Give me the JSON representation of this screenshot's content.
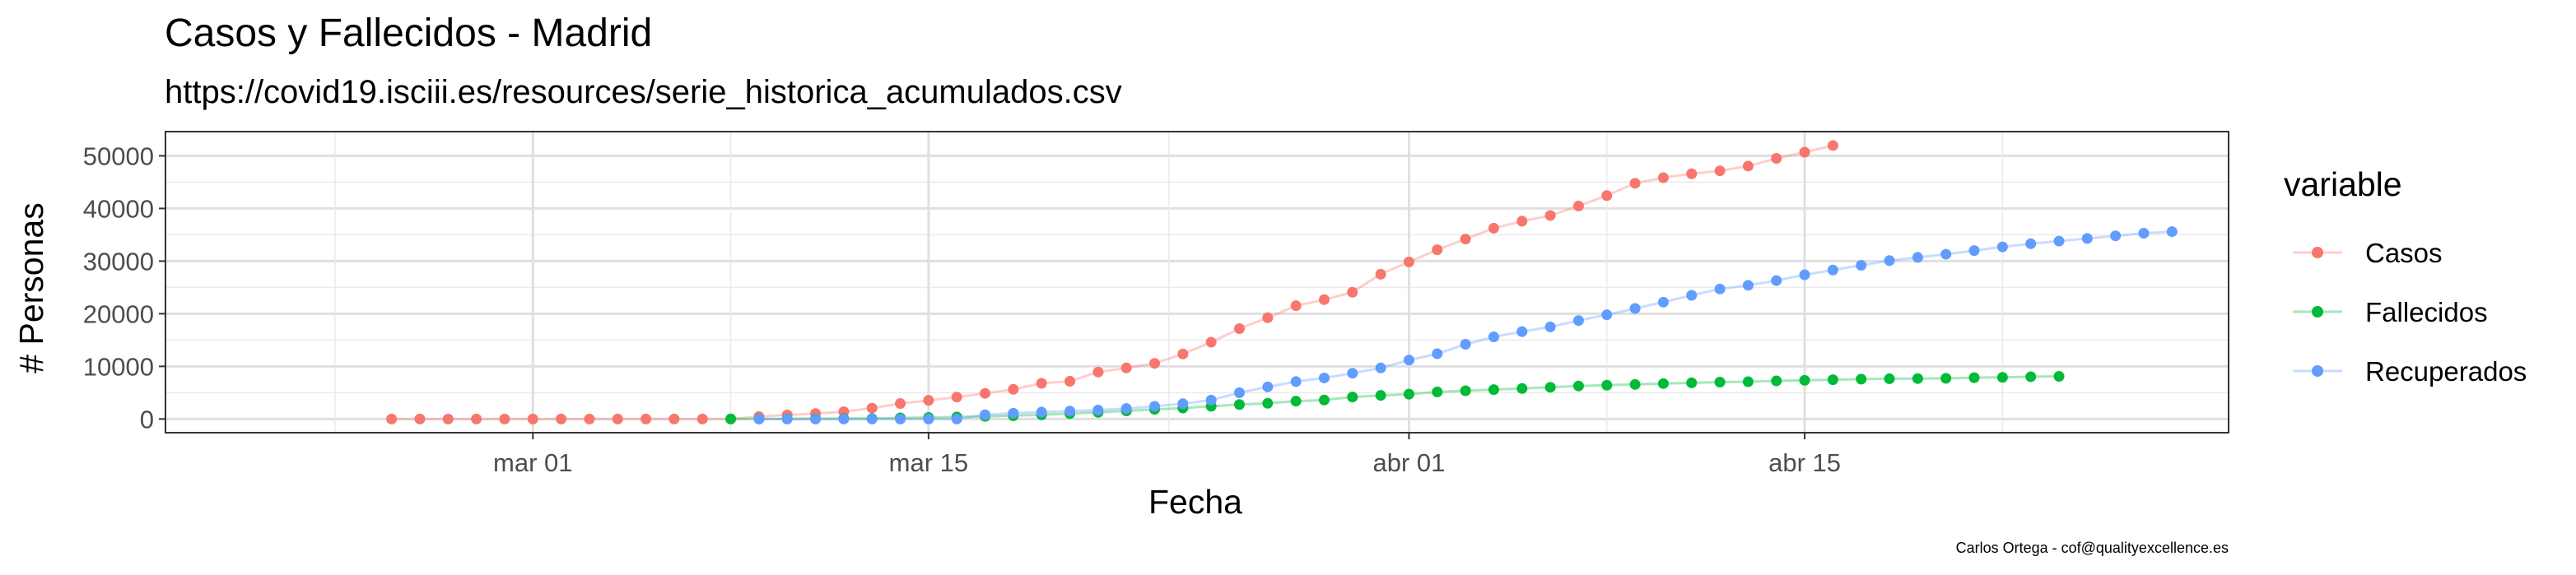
{
  "chart_data": {
    "type": "line",
    "title": "Casos y Fallecidos - Madrid",
    "subtitle": "https://covid19.isciii.es/resources/serie_historica_acumulados.csv",
    "xlabel": "Fecha",
    "ylabel": "# Personas",
    "caption": "Carlos Ortega - cof@qualityexcellence.es",
    "x_axis": {
      "type": "date",
      "range": [
        "2020-02-17",
        "2020-04-30"
      ],
      "ticks": [
        {
          "date": "2020-03-01",
          "label": "mar 01"
        },
        {
          "date": "2020-03-15",
          "label": "mar 15"
        },
        {
          "date": "2020-04-01",
          "label": "abr 01"
        },
        {
          "date": "2020-04-15",
          "label": "abr 15"
        }
      ]
    },
    "y_axis": {
      "range": [
        -2600,
        54600
      ],
      "ticks": [
        0,
        10000,
        20000,
        30000,
        40000,
        50000
      ]
    },
    "grid": true,
    "legend": {
      "title": "variable",
      "position": "right"
    },
    "series": [
      {
        "name": "Casos",
        "color": "#F8766D",
        "start_date": "2020-02-25",
        "values": [
          0,
          0,
          0,
          0,
          0,
          0,
          0,
          0,
          0,
          0,
          0,
          0,
          0,
          469,
          782,
          1024,
          1388,
          2078,
          2940,
          3544,
          4165,
          4871,
          5637,
          6777,
          7165,
          8921,
          9702,
          10575,
          12352,
          14597,
          17166,
          19243,
          21520,
          22677,
          24090,
          27509,
          29840,
          32155,
          34188,
          36249,
          37584,
          38666,
          40469,
          42450,
          44783,
          45849,
          46587,
          47146,
          48048,
          49526,
          50694,
          51956
        ]
      },
      {
        "name": "Fallecidos",
        "color": "#00BA38",
        "start_date": "2020-03-08",
        "values": [
          16,
          21,
          31,
          56,
          81,
          86,
          213,
          289,
          390,
          498,
          628,
          804,
          1021,
          1263,
          1535,
          1825,
          2090,
          2412,
          2757,
          2982,
          3392,
          3603,
          4175,
          4483,
          4723,
          5136,
          5371,
          5586,
          5800,
          6023,
          6278,
          6423,
          6568,
          6724,
          6877,
          7007,
          7084,
          7239,
          7351,
          7460,
          7577,
          7650,
          7684,
          7732,
          7855,
          7913,
          8037,
          8108
        ]
      },
      {
        "name": "Recuperados",
        "color": "#619CFF",
        "start_date": "2020-03-09",
        "values": [
          0,
          0,
          0,
          0,
          0,
          0,
          0,
          0,
          800,
          1100,
          1300,
          1500,
          1700,
          2000,
          2400,
          2900,
          3600,
          5000,
          6100,
          7100,
          7800,
          8700,
          9700,
          11200,
          12400,
          14200,
          15600,
          16600,
          17500,
          18700,
          19800,
          21000,
          22200,
          23500,
          24700,
          25400,
          26300,
          27400,
          28300,
          29200,
          30100,
          30700,
          31300,
          32000,
          32700,
          33300,
          33800,
          34300,
          34800,
          35300,
          35600
        ]
      }
    ]
  }
}
